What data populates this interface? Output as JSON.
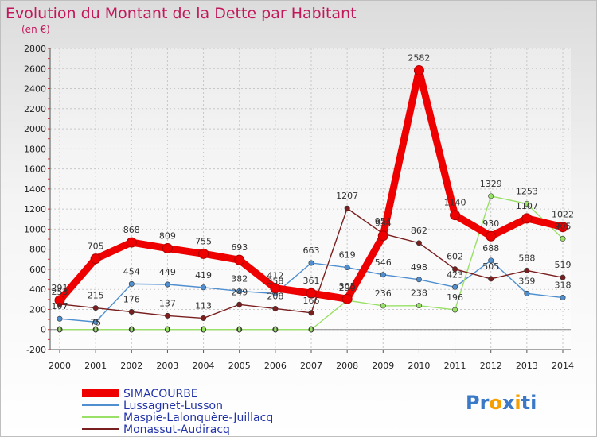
{
  "chart_data": {
    "type": "line",
    "title": "Evolution du Montant de la Dette par Habitant",
    "subtitle": "(en €)",
    "ylim": [
      -200,
      2800
    ],
    "yticks": [
      -200,
      0,
      200,
      400,
      600,
      800,
      1000,
      1200,
      1400,
      1600,
      1800,
      2000,
      2200,
      2400,
      2600,
      2800
    ],
    "categories": [
      "2000",
      "2001",
      "2002",
      "2003",
      "2004",
      "2005",
      "2006",
      "2007",
      "2008",
      "2009",
      "2010",
      "2011",
      "2012",
      "2013",
      "2014"
    ],
    "grid": true,
    "legend_position": "bottom-left",
    "series": [
      {
        "name": "SIMACOURBE",
        "color": "#ee0000",
        "values": [
          291,
          705,
          868,
          809,
          755,
          693,
          412,
          361,
          305,
          934,
          2582,
          1140,
          930,
          1107,
          1022
        ],
        "labels": [
          "291",
          "705",
          "868",
          "809",
          "755",
          "693",
          "412",
          "361",
          "305",
          "934",
          "2582",
          "1140",
          "930",
          "1107",
          "1022"
        ]
      },
      {
        "name": "Lussagnet-Lusson",
        "color": "#4f8fd0",
        "values": [
          107,
          75,
          454,
          449,
          419,
          382,
          358,
          663,
          619,
          546,
          498,
          423,
          688,
          359,
          318
        ],
        "labels": [
          "107",
          "75",
          "454",
          "449",
          "419",
          "382",
          "358",
          "663",
          "619",
          "546",
          "498",
          "423",
          "688",
          "359",
          "318"
        ]
      },
      {
        "name": "Maspie-Lalonquère-Juillacq",
        "color": "#99e066",
        "values": [
          0,
          0,
          0,
          0,
          0,
          0,
          0,
          0,
          290,
          236,
          238,
          196,
          1329,
          1253,
          905
        ],
        "labels": [
          "0",
          "0",
          "0",
          "0",
          "0",
          "0",
          "0",
          "0",
          "290",
          "236",
          "238",
          "196",
          "1329",
          "1253",
          "905"
        ]
      },
      {
        "name": "Monassut-Audiracq",
        "color": "#7a1f1f",
        "values": [
          253,
          215,
          176,
          137,
          113,
          249,
          208,
          166,
          1207,
          954,
          862,
          602,
          505,
          588,
          519
        ],
        "labels": [
          "253",
          "215",
          "176",
          "137",
          "113",
          "249",
          "208",
          "166",
          "1207",
          "954",
          "862",
          "602",
          "505",
          "588",
          "519"
        ]
      }
    ]
  },
  "logo": {
    "text_parts": [
      "Pr",
      "o",
      "x",
      "i",
      "ti"
    ],
    "colors": [
      "#3a78c8",
      "#f5a000",
      "#3a78c8",
      "#f5a000",
      "#3a78c8"
    ]
  }
}
